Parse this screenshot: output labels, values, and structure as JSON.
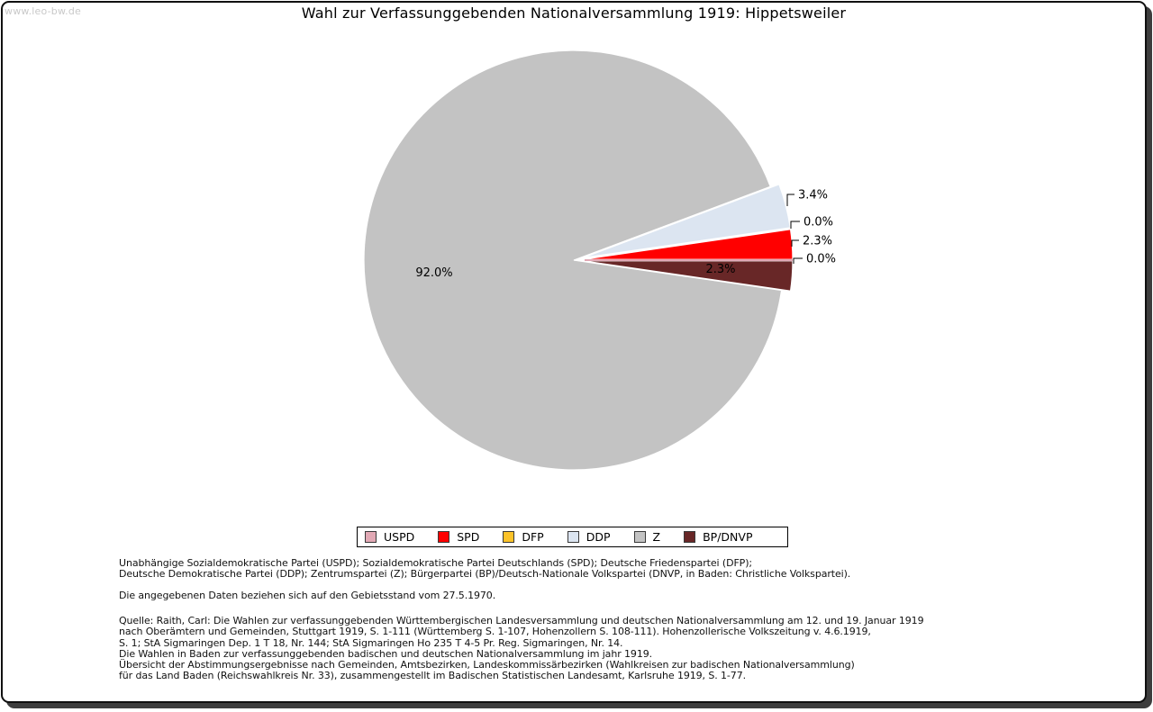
{
  "watermark": "www.leo-bw.de",
  "title": "Wahl zur Verfassunggebenden Nationalversammlung 1919: Hippetsweiler",
  "chart_data": {
    "type": "pie",
    "title": "Wahl zur Verfassunggebenden Nationalversammlung 1919: Hippetsweiler",
    "unit": "percent",
    "direction": "counterclockwise",
    "start_angle_deg": 0,
    "legend_position": "bottom",
    "slices": [
      {
        "label": "USPD",
        "value": 0.0,
        "color": "#e2a9b5"
      },
      {
        "label": "SPD",
        "value": 2.3,
        "color": "#ff0000"
      },
      {
        "label": "DFP",
        "value": 0.0,
        "color": "#fcc32a"
      },
      {
        "label": "DDP",
        "value": 3.4,
        "color": "#dce5f1"
      },
      {
        "label": "Z",
        "value": 92.0,
        "color": "#c3c3c3"
      },
      {
        "label": "BP/DNVP",
        "value": 2.3,
        "color": "#682727"
      }
    ]
  },
  "footnotes": {
    "parties": [
      "Unabhängige Sozialdemokratische Partei (USPD); Sozialdemokratische Partei Deutschlands (SPD); Deutsche Friedenspartei (DFP);",
      "Deutsche Demokratische Partei (DDP); Zentrumspartei (Z); Bürgerpartei (BP)/Deutsch-Nationale Volkspartei (DNVP, in Baden: Christliche Volkspartei)."
    ],
    "territory": [
      "Die angegebenen Daten beziehen sich auf den Gebietsstand vom 27.5.1970."
    ],
    "source": [
      "Quelle: Raith, Carl: Die Wahlen zur verfassunggebenden Württembergischen Landesversammlung und deutschen Nationalversammlung am 12. und 19. Januar 1919",
      "nach Oberämtern und Gemeinden, Stuttgart 1919, S. 1-111 (Württemberg S. 1-107, Hohenzollern S. 108-111). Hohenzollerische Volkszeitung v. 4.6.1919,",
      "S. 1; StA Sigmaringen Dep. 1 T 18, Nr. 144; StA Sigmaringen Ho 235 T 4-5 Pr. Reg. Sigmaringen, Nr. 14.",
      "Die Wahlen in Baden zur verfassunggebenden badischen und deutschen Nationalversammlung im jahr 1919.",
      "Übersicht der Abstimmungsergebnisse nach Gemeinden, Amtsbezirken, Landeskommissärbezirken (Wahlkreisen zur badischen Nationalversammlung)",
      "für das Land Baden (Reichswahlkreis Nr. 33), zusammengestellt im Badischen Statistischen Landesamt, Karlsruhe 1919, S. 1-77."
    ]
  }
}
